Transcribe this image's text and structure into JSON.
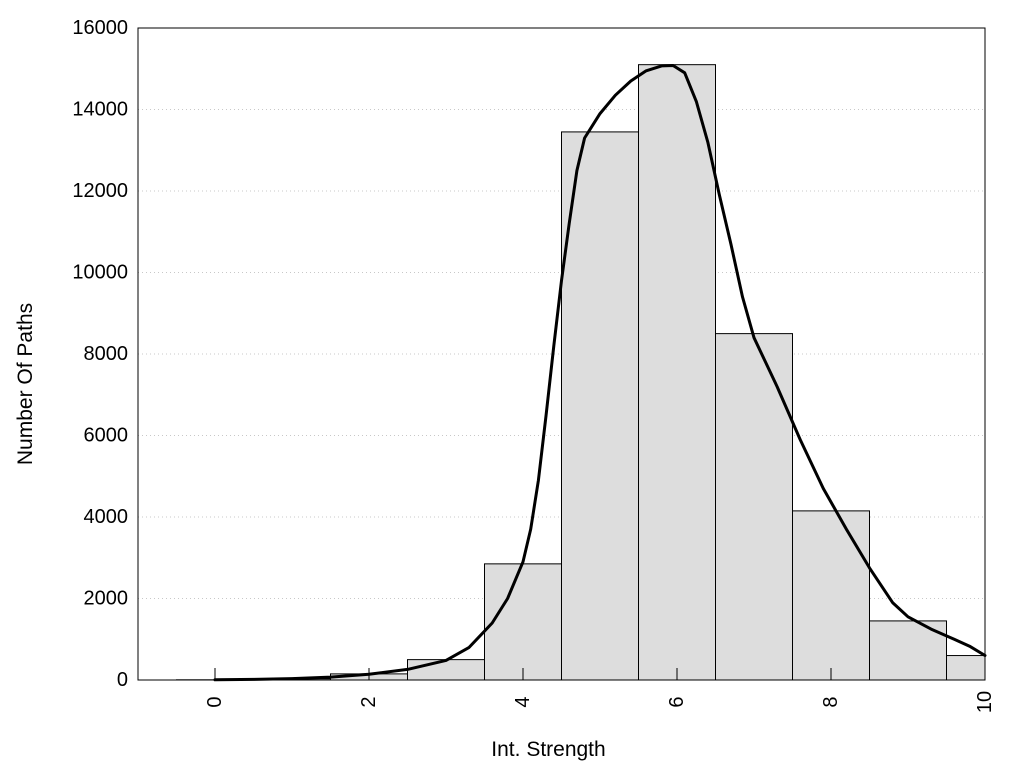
{
  "chart_data": {
    "type": "bar",
    "title": "",
    "xlabel": "Int. Strength",
    "ylabel": "Number Of Paths",
    "xlim": [
      -1,
      10
    ],
    "ylim": [
      0,
      16000
    ],
    "x_ticks": [
      0,
      2,
      4,
      6,
      8,
      10
    ],
    "x_tick_labels": [
      "0",
      "2",
      "4",
      "6",
      "8",
      "10"
    ],
    "y_ticks": [
      0,
      2000,
      4000,
      6000,
      8000,
      10000,
      12000,
      14000,
      16000
    ],
    "y_tick_labels": [
      "0",
      "2000",
      "4000",
      "6000",
      "8000",
      "10000",
      "12000",
      "14000",
      "16000"
    ],
    "grid": "horizontal dotted",
    "bar_color": "#dddddd",
    "bar_edge_color": "#000000",
    "curve_color": "#000000",
    "bars": [
      {
        "x": 0,
        "value": 5
      },
      {
        "x": 1,
        "value": 30
      },
      {
        "x": 2,
        "value": 150
      },
      {
        "x": 3,
        "value": 500
      },
      {
        "x": 4,
        "value": 2850
      },
      {
        "x": 5,
        "value": 13450
      },
      {
        "x": 6,
        "value": 15100
      },
      {
        "x": 7,
        "value": 8500
      },
      {
        "x": 8,
        "value": 4150
      },
      {
        "x": 9,
        "value": 1450
      },
      {
        "x": 10,
        "value": 600
      }
    ],
    "curve": [
      [
        0,
        5
      ],
      [
        0.5,
        15
      ],
      [
        1,
        35
      ],
      [
        1.5,
        70
      ],
      [
        2,
        140
      ],
      [
        2.5,
        260
      ],
      [
        3,
        480
      ],
      [
        3.3,
        800
      ],
      [
        3.6,
        1400
      ],
      [
        3.8,
        2000
      ],
      [
        4,
        2900
      ],
      [
        4.1,
        3700
      ],
      [
        4.2,
        4900
      ],
      [
        4.3,
        6500
      ],
      [
        4.4,
        8200
      ],
      [
        4.5,
        9800
      ],
      [
        4.6,
        11200
      ],
      [
        4.7,
        12500
      ],
      [
        4.8,
        13300
      ],
      [
        5,
        13900
      ],
      [
        5.2,
        14350
      ],
      [
        5.4,
        14700
      ],
      [
        5.6,
        14950
      ],
      [
        5.8,
        15070
      ],
      [
        5.95,
        15080
      ],
      [
        6.1,
        14900
      ],
      [
        6.25,
        14200
      ],
      [
        6.4,
        13200
      ],
      [
        6.55,
        11900
      ],
      [
        6.7,
        10700
      ],
      [
        6.85,
        9400
      ],
      [
        7,
        8400
      ],
      [
        7.3,
        7200
      ],
      [
        7.6,
        5900
      ],
      [
        7.9,
        4700
      ],
      [
        8.2,
        3700
      ],
      [
        8.5,
        2750
      ],
      [
        8.8,
        1900
      ],
      [
        9,
        1550
      ],
      [
        9.3,
        1250
      ],
      [
        9.6,
        1000
      ],
      [
        9.8,
        830
      ],
      [
        10,
        600
      ]
    ]
  }
}
